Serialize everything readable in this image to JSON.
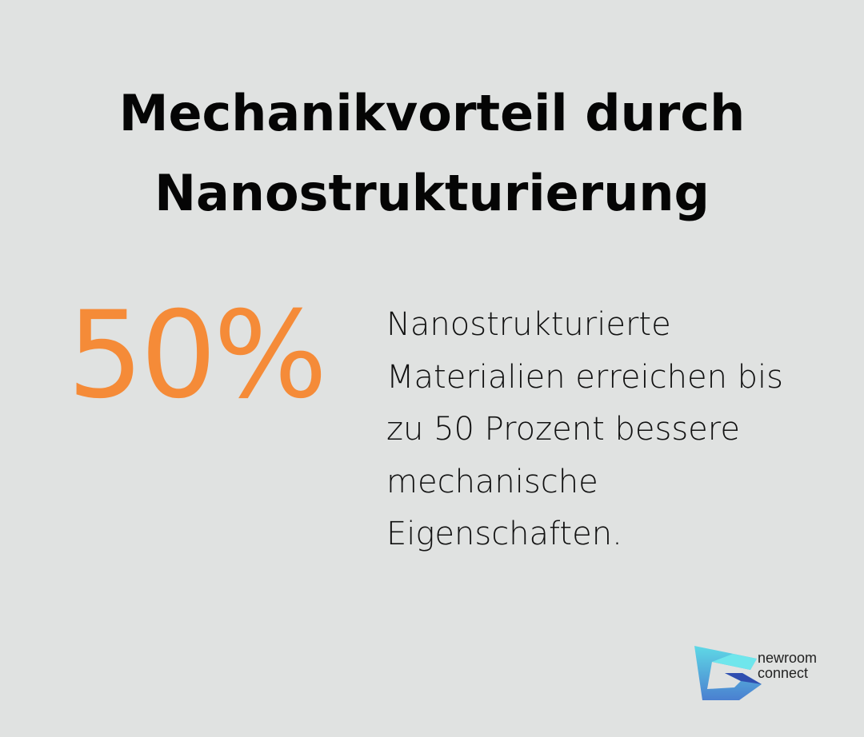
{
  "title": {
    "line1": "Mechanikvorteil durch",
    "line2": "Nanostrukturierung"
  },
  "stat": {
    "value": "50%",
    "color": "#f58b38"
  },
  "description": "Nanostrukturierte Materialien erreichen bis zu 50 Prozent bessere mechanische Eigenschaften.",
  "logo": {
    "line1": "newroom",
    "line2": "connect",
    "icon": "newroom-connect-logo-icon"
  }
}
